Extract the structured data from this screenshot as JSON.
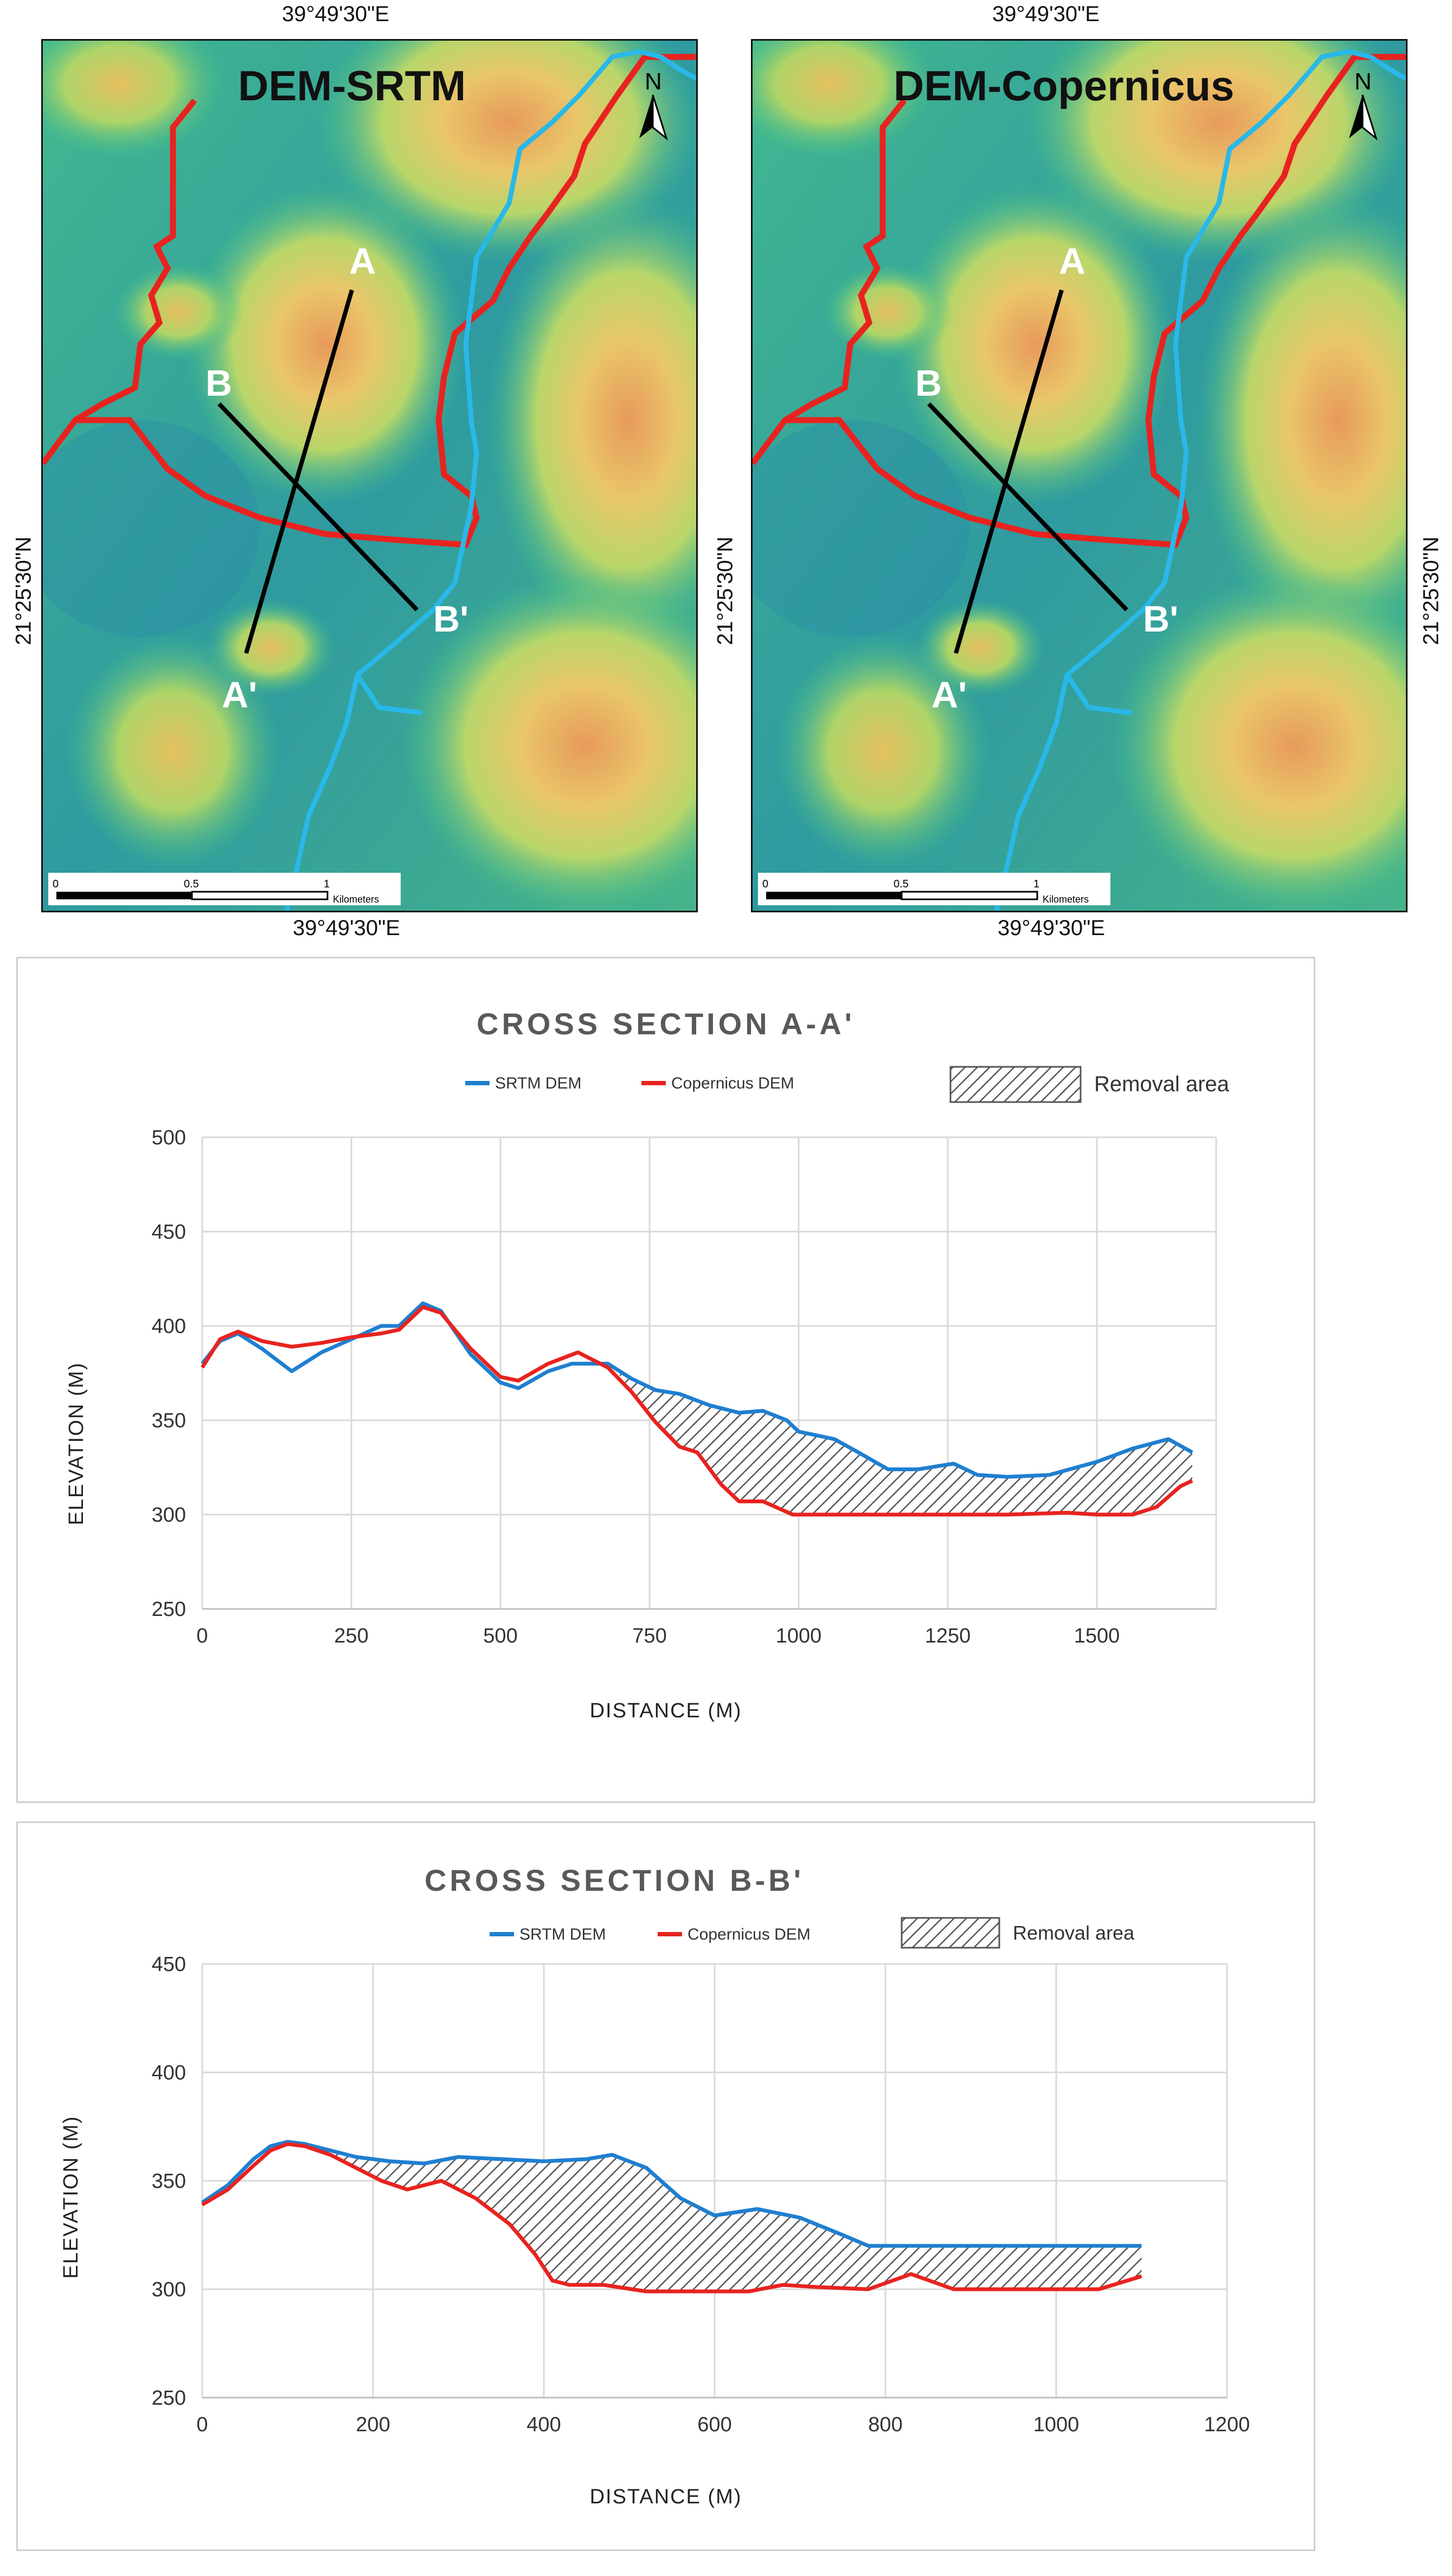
{
  "maps": [
    {
      "title": "DEM-SRTM",
      "lon_top": "39°49'30\"E",
      "lon_bottom": "39°49'30\"E",
      "lat_left": "21°25'30\"N",
      "north_label": "N",
      "section_labels": {
        "a": "A",
        "a_prime": "A'",
        "b": "B",
        "b_prime": "B'"
      },
      "scale_ticks": [
        "0",
        "0.5",
        "1"
      ],
      "scale_unit": "Kilometers"
    },
    {
      "title": "DEM-Copernicus",
      "lon_top": "39°49'30\"E",
      "lon_bottom": "39°49'30\"E",
      "lat_left": "21°25'30\"N",
      "lat_right": "21°25'30\"N",
      "north_label": "N",
      "section_labels": {
        "a": "A",
        "a_prime": "A'",
        "b": "B",
        "b_prime": "B'"
      },
      "scale_ticks": [
        "0",
        "0.5",
        "1"
      ],
      "scale_unit": "Kilometers"
    }
  ],
  "colors": {
    "srtm": "#1f7fd0",
    "copernicus": "#e8231f",
    "boundary": "#e8231f",
    "stream": "#29b8e8",
    "section_line": "#000000",
    "hatch": "#555555",
    "grid": "#d9d9d9"
  },
  "chart_data": [
    {
      "type": "line",
      "title": "CROSS SECTION A-A'",
      "xlabel": "DISTANCE (M)",
      "ylabel": "ELEVATION (M)",
      "xlim": [
        0,
        1700
      ],
      "ylim": [
        250,
        500
      ],
      "xticks": [
        "0",
        "250",
        "500",
        "750",
        "1000",
        "1250",
        "1500"
      ],
      "xtick_values": [
        0,
        250,
        500,
        750,
        1000,
        1250,
        1500
      ],
      "yticks": [
        "250",
        "300",
        "350",
        "400",
        "450",
        "500"
      ],
      "ytick_values": [
        250,
        300,
        350,
        400,
        450,
        500
      ],
      "grid": true,
      "legend": {
        "position": "top",
        "entries": [
          "SRTM DEM",
          "Copernicus DEM",
          "Removal area"
        ]
      },
      "removal_area_x": [
        700,
        1660
      ],
      "series": [
        {
          "name": "SRTM DEM",
          "color": "#1f7fd0",
          "points": [
            [
              0,
              380
            ],
            [
              30,
              392
            ],
            [
              60,
              396
            ],
            [
              100,
              388
            ],
            [
              150,
              376
            ],
            [
              200,
              386
            ],
            [
              250,
              393
            ],
            [
              300,
              400
            ],
            [
              330,
              400
            ],
            [
              370,
              412
            ],
            [
              400,
              408
            ],
            [
              450,
              385
            ],
            [
              500,
              370
            ],
            [
              530,
              367
            ],
            [
              580,
              376
            ],
            [
              620,
              380
            ],
            [
              680,
              380
            ],
            [
              720,
              372
            ],
            [
              760,
              366
            ],
            [
              800,
              364
            ],
            [
              850,
              358
            ],
            [
              900,
              354
            ],
            [
              940,
              355
            ],
            [
              980,
              350
            ],
            [
              1000,
              344
            ],
            [
              1060,
              340
            ],
            [
              1100,
              333
            ],
            [
              1150,
              324
            ],
            [
              1200,
              324
            ],
            [
              1260,
              327
            ],
            [
              1300,
              321
            ],
            [
              1350,
              320
            ],
            [
              1420,
              321
            ],
            [
              1500,
              328
            ],
            [
              1560,
              335
            ],
            [
              1620,
              340
            ],
            [
              1660,
              333
            ]
          ]
        },
        {
          "name": "Copernicus DEM",
          "color": "#e8231f",
          "points": [
            [
              0,
              378
            ],
            [
              30,
              393
            ],
            [
              60,
              397
            ],
            [
              100,
              392
            ],
            [
              150,
              389
            ],
            [
              200,
              391
            ],
            [
              250,
              394
            ],
            [
              300,
              396
            ],
            [
              330,
              398
            ],
            [
              370,
              410
            ],
            [
              400,
              407
            ],
            [
              450,
              388
            ],
            [
              500,
              373
            ],
            [
              530,
              371
            ],
            [
              580,
              380
            ],
            [
              630,
              386
            ],
            [
              680,
              378
            ],
            [
              720,
              365
            ],
            [
              760,
              349
            ],
            [
              800,
              336
            ],
            [
              830,
              333
            ],
            [
              870,
              316
            ],
            [
              900,
              307
            ],
            [
              940,
              307
            ],
            [
              990,
              300
            ],
            [
              1050,
              300
            ],
            [
              1150,
              300
            ],
            [
              1250,
              300
            ],
            [
              1350,
              300
            ],
            [
              1450,
              301
            ],
            [
              1500,
              300
            ],
            [
              1560,
              300
            ],
            [
              1600,
              304
            ],
            [
              1640,
              315
            ],
            [
              1660,
              318
            ]
          ]
        }
      ]
    },
    {
      "type": "line",
      "title": "CROSS SECTION B-B'",
      "xlabel": "DISTANCE (M)",
      "ylabel": "ELEVATION (M)",
      "xlim": [
        0,
        1200
      ],
      "ylim": [
        250,
        450
      ],
      "xticks": [
        "0",
        "200",
        "400",
        "600",
        "800",
        "1000",
        "1200"
      ],
      "xtick_values": [
        0,
        200,
        400,
        600,
        800,
        1000,
        1200
      ],
      "yticks": [
        "250",
        "300",
        "350",
        "400",
        "450"
      ],
      "ytick_values": [
        250,
        300,
        350,
        400,
        450
      ],
      "grid": true,
      "legend": {
        "position": "top",
        "entries": [
          "SRTM DEM",
          "Copernicus DEM",
          "Removal area"
        ]
      },
      "removal_area_x": [
        120,
        1100
      ],
      "series": [
        {
          "name": "SRTM DEM",
          "color": "#1f7fd0",
          "points": [
            [
              0,
              340
            ],
            [
              30,
              348
            ],
            [
              60,
              360
            ],
            [
              80,
              366
            ],
            [
              100,
              368
            ],
            [
              120,
              367
            ],
            [
              150,
              364
            ],
            [
              180,
              361
            ],
            [
              220,
              359
            ],
            [
              260,
              358
            ],
            [
              300,
              361
            ],
            [
              350,
              360
            ],
            [
              400,
              359
            ],
            [
              450,
              360
            ],
            [
              480,
              362
            ],
            [
              520,
              356
            ],
            [
              560,
              342
            ],
            [
              600,
              334
            ],
            [
              650,
              337
            ],
            [
              700,
              333
            ],
            [
              750,
              325
            ],
            [
              780,
              320
            ],
            [
              850,
              320
            ],
            [
              950,
              320
            ],
            [
              1050,
              320
            ],
            [
              1100,
              320
            ]
          ]
        },
        {
          "name": "Copernicus DEM",
          "color": "#e8231f",
          "points": [
            [
              0,
              339
            ],
            [
              30,
              346
            ],
            [
              60,
              357
            ],
            [
              80,
              364
            ],
            [
              100,
              367
            ],
            [
              120,
              366
            ],
            [
              150,
              362
            ],
            [
              180,
              356
            ],
            [
              210,
              350
            ],
            [
              240,
              346
            ],
            [
              280,
              350
            ],
            [
              320,
              342
            ],
            [
              360,
              330
            ],
            [
              390,
              316
            ],
            [
              410,
              304
            ],
            [
              430,
              302
            ],
            [
              470,
              302
            ],
            [
              520,
              299
            ],
            [
              600,
              299
            ],
            [
              640,
              299
            ],
            [
              680,
              302
            ],
            [
              720,
              301
            ],
            [
              780,
              300
            ],
            [
              830,
              307
            ],
            [
              880,
              300
            ],
            [
              950,
              300
            ],
            [
              1050,
              300
            ],
            [
              1100,
              306
            ]
          ]
        }
      ]
    }
  ]
}
